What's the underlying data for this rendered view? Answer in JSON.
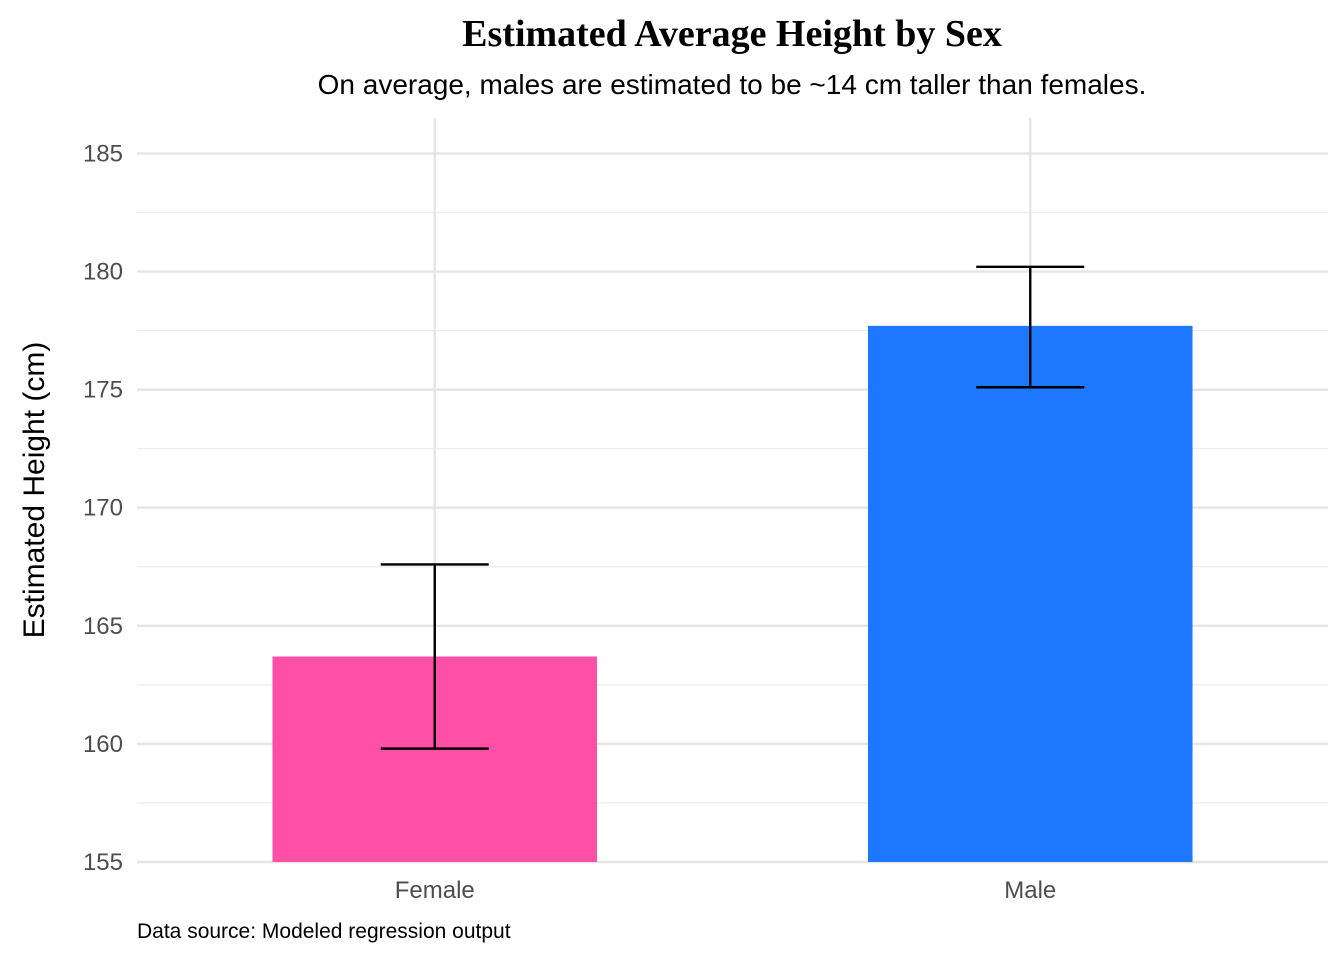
{
  "chart_data": {
    "type": "bar",
    "title": "Estimated Average Height by Sex",
    "subtitle": "On average, males are estimated to be ~14 cm taller than females.",
    "xlabel": "",
    "ylabel": "Estimated Height (cm)",
    "caption": "Data source: Modeled regression output",
    "categories": [
      "Female",
      "Male"
    ],
    "values": [
      163.7,
      177.7
    ],
    "error_low": [
      159.8,
      175.1
    ],
    "error_high": [
      167.6,
      180.2
    ],
    "colors": [
      "#FF4FA7",
      "#1E78FF"
    ],
    "ylim": [
      155,
      186.5
    ],
    "yticks": [
      155,
      160,
      165,
      170,
      175,
      180,
      185
    ],
    "grid": true,
    "legend": "none"
  }
}
